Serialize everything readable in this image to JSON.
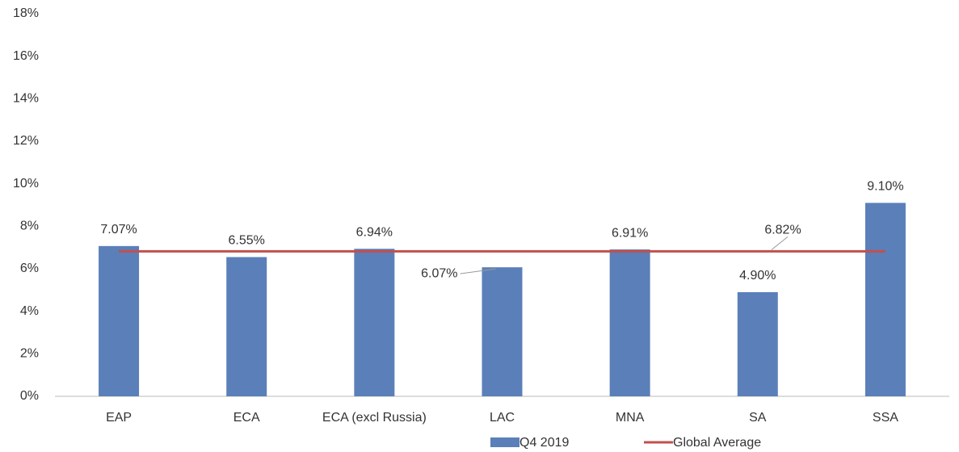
{
  "chart_data": {
    "type": "bar",
    "categories": [
      "EAP",
      "ECA",
      "ECA (excl Russia)",
      "LAC",
      "MNA",
      "SA",
      "SSA"
    ],
    "series": [
      {
        "name": "Q4 2019",
        "color": "#5b7fb9",
        "values": [
          7.07,
          6.55,
          6.94,
          6.07,
          6.91,
          4.9,
          9.1
        ],
        "value_labels": [
          "7.07%",
          "6.55%",
          "6.94%",
          "6.07%",
          "6.91%",
          "4.90%",
          "9.10%"
        ]
      },
      {
        "name": "Global Average",
        "type": "line",
        "color": "#c0504d",
        "value": 6.82,
        "value_label": "6.82%"
      }
    ],
    "ylim": [
      0,
      18
    ],
    "yticks": [
      {
        "value": 0,
        "label": "0%"
      },
      {
        "value": 2,
        "label": "2%"
      },
      {
        "value": 4,
        "label": "4%"
      },
      {
        "value": 6,
        "label": "6%"
      },
      {
        "value": 8,
        "label": "8%"
      },
      {
        "value": 10,
        "label": "10%"
      },
      {
        "value": 12,
        "label": "12%"
      },
      {
        "value": 14,
        "label": "14%"
      },
      {
        "value": 16,
        "label": "16%"
      },
      {
        "value": 18,
        "label": "18%"
      }
    ],
    "grid": false
  }
}
